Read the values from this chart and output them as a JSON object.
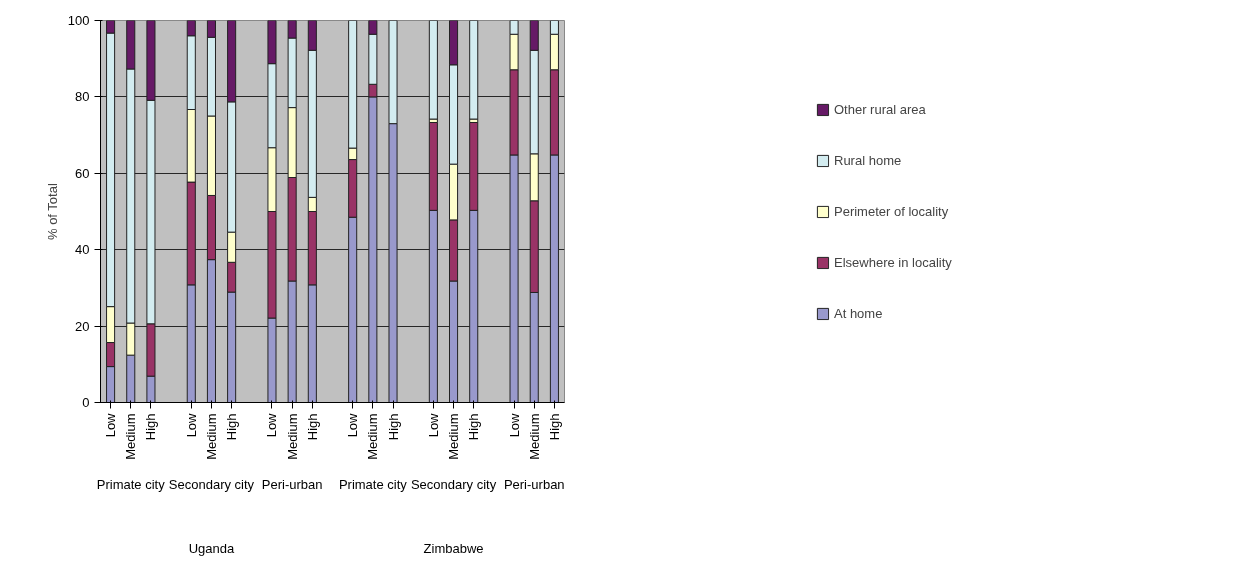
{
  "chart_data": {
    "type": "bar",
    "stacked": true,
    "ylabel": "% of Total",
    "categories": [
      "Low",
      "Medium",
      "High",
      null,
      "Low",
      "Medium",
      "High",
      null,
      "Low",
      "Medium",
      "High",
      null,
      "Low",
      "Medium",
      "High",
      null,
      "Low",
      "Medium",
      "High",
      null,
      "Low",
      "Medium",
      "High"
    ],
    "series": [
      {
        "name": "At home",
        "color": "#9999cc",
        "values": [
          9.4,
          12.4,
          6.9,
          null,
          30.8,
          37.4,
          28.9,
          null,
          22.1,
          31.8,
          30.8,
          null,
          48.5,
          80.0,
          73.0,
          null,
          50.3,
          31.8,
          50.3,
          null,
          64.8,
          28.8,
          64.8
        ]
      },
      {
        "name": "Elsewhere in locality",
        "color": "#993366",
        "values": [
          6.3,
          0,
          13.7,
          null,
          26.9,
          16.8,
          7.8,
          null,
          27.9,
          27.1,
          19.2,
          null,
          15.1,
          3.3,
          0,
          null,
          23.0,
          16.0,
          23.0,
          null,
          22.3,
          24.0,
          22.3
        ]
      },
      {
        "name": "Perimeter of locality",
        "color": "#ffffcc",
        "values": [
          9.4,
          8.4,
          0,
          null,
          19.0,
          20.8,
          7.9,
          null,
          16.7,
          18.3,
          3.7,
          null,
          3.0,
          0,
          0,
          null,
          0.9,
          14.6,
          0.9,
          null,
          9.3,
          12.3,
          9.3
        ]
      },
      {
        "name": "Rural home",
        "color": "#d3ecf0",
        "values": [
          71.6,
          66.5,
          58.5,
          null,
          19.3,
          20.6,
          34.1,
          null,
          22.0,
          18.2,
          38.5,
          null,
          33.4,
          13.1,
          27.0,
          null,
          25.8,
          26.0,
          25.8,
          null,
          3.6,
          27.1,
          3.6
        ]
      },
      {
        "name": "Other rural area",
        "color": "#661a66",
        "values": [
          3.3,
          12.7,
          20.9,
          null,
          4.0,
          4.4,
          21.3,
          null,
          11.3,
          4.6,
          7.8,
          null,
          0,
          3.6,
          0,
          null,
          0,
          11.6,
          0,
          null,
          0,
          7.8,
          0
        ]
      }
    ],
    "ylim": [
      0,
      100
    ],
    "yticks": [
      0,
      20,
      40,
      60,
      80,
      100
    ],
    "grid": "y",
    "legend": "right",
    "annotations": [
      "Primate city",
      "Secondary city",
      "Peri-urban",
      "Primate city",
      "Secondary city",
      "Peri-urban",
      "Uganda",
      "Zimbabwe"
    ]
  }
}
